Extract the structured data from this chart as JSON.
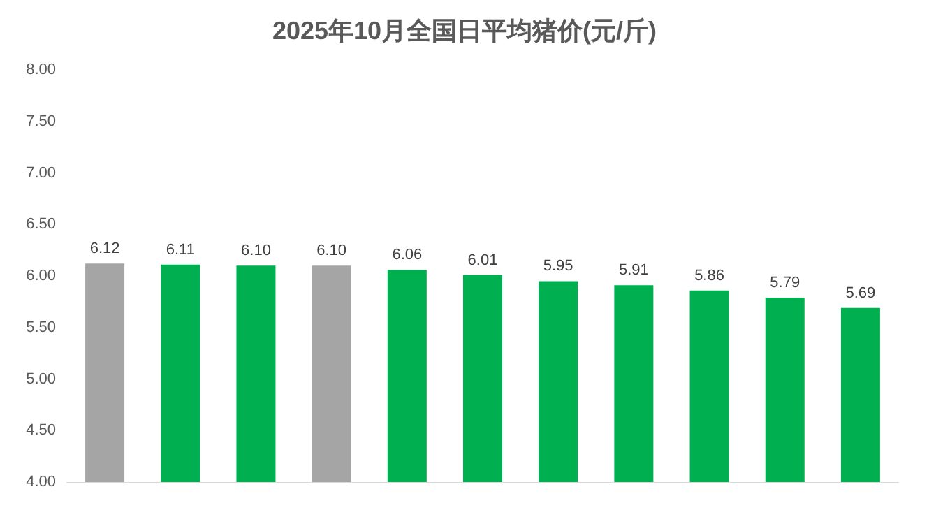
{
  "chart_data": {
    "type": "bar",
    "title": "2025年10月全国日平均猪价(元/斤)",
    "categories": [
      null,
      null,
      null,
      null,
      null,
      null,
      null,
      null,
      null,
      null,
      null
    ],
    "values": [
      6.12,
      6.11,
      6.1,
      6.1,
      6.06,
      6.01,
      5.95,
      5.91,
      5.86,
      5.79,
      5.69
    ],
    "colors": [
      "#a5a5a5",
      "#00b050",
      "#00b050",
      "#a5a5a5",
      "#00b050",
      "#00b050",
      "#00b050",
      "#00b050",
      "#00b050",
      "#00b050",
      "#00b050"
    ],
    "value_labels": [
      "6.12",
      "6.11",
      "6.10",
      "6.10",
      "6.06",
      "6.01",
      "5.95",
      "5.91",
      "5.86",
      "5.79",
      "5.69"
    ],
    "ylim": [
      4,
      8
    ],
    "yticks": [
      {
        "value": 4,
        "label": "4.00"
      },
      {
        "value": 4.5,
        "label": "4.50"
      },
      {
        "value": 5,
        "label": "5.00"
      },
      {
        "value": 5.5,
        "label": "5.50"
      },
      {
        "value": 6,
        "label": "6.00"
      },
      {
        "value": 6.5,
        "label": "6.50"
      },
      {
        "value": 7,
        "label": "7.00"
      },
      {
        "value": 7.5,
        "label": "7.50"
      },
      {
        "value": 8,
        "label": "8.00"
      }
    ]
  }
}
